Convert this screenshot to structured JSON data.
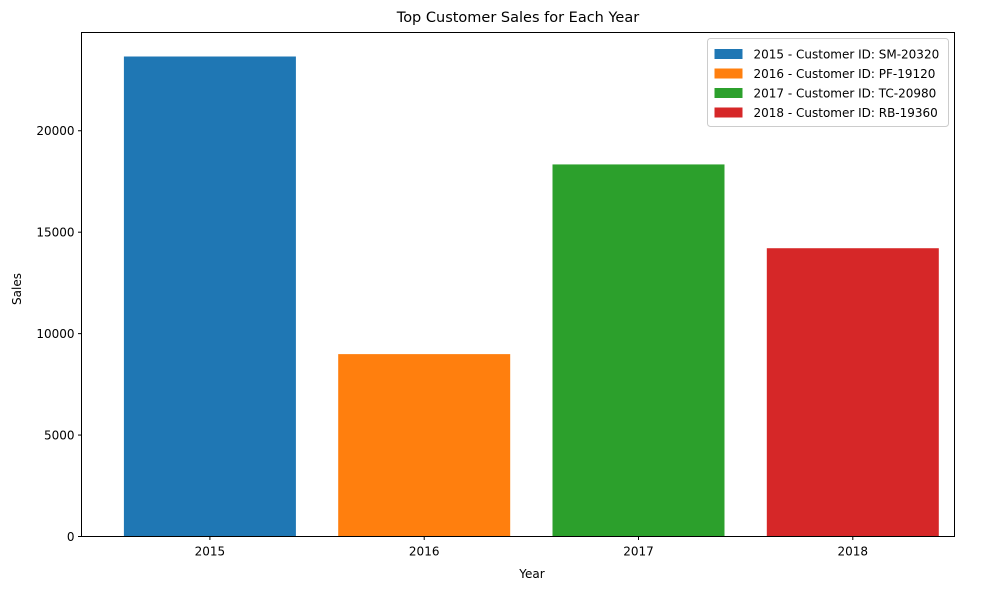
{
  "chart_data": {
    "type": "bar",
    "title": "Top Customer Sales for Each Year",
    "xlabel": "Year",
    "ylabel": "Sales",
    "categories": [
      "2015",
      "2016",
      "2017",
      "2018"
    ],
    "values": [
      23660,
      8990,
      18340,
      14210
    ],
    "colors": [
      "#1f77b4",
      "#ff7f0e",
      "#2ca02c",
      "#d62728"
    ],
    "yticks": [
      0,
      5000,
      10000,
      15000,
      20000
    ],
    "ylim": [
      0,
      24843
    ],
    "grid": false,
    "legend": {
      "position": "top-right",
      "entries": [
        "2015 - Customer ID: SM-20320",
        "2016 - Customer ID: PF-19120",
        "2017 - Customer ID: TC-20980",
        "2018 - Customer ID: RB-19360"
      ]
    }
  }
}
